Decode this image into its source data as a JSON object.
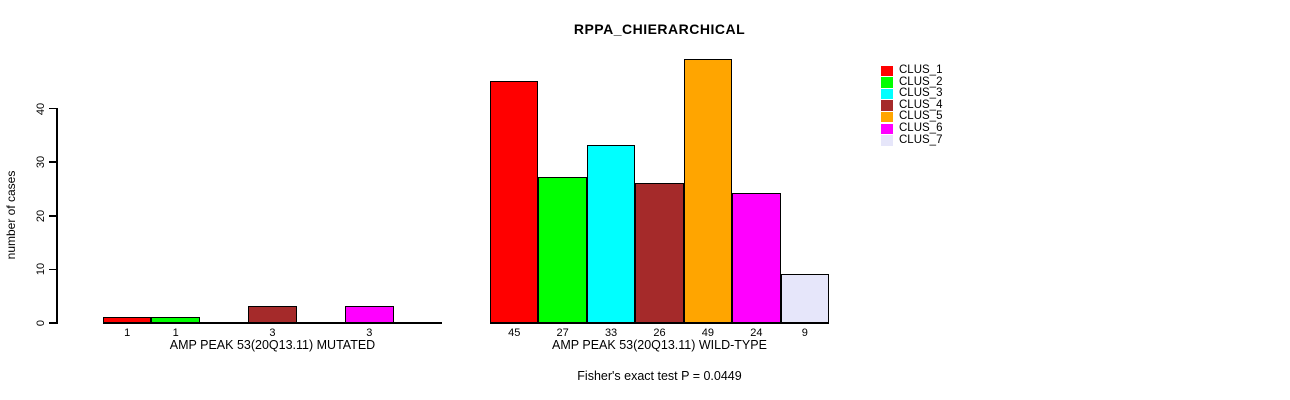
{
  "chart_data": {
    "type": "bar",
    "title": "RPPA_CHIERARCHICAL",
    "ylabel": "number of cases",
    "ylim": [
      0,
      49
    ],
    "yticks": [
      0,
      10,
      20,
      30,
      40
    ],
    "grid": false,
    "legend_position": "right",
    "categories": [
      "CLUS_1",
      "CLUS_2",
      "CLUS_3",
      "CLUS_4",
      "CLUS_5",
      "CLUS_6",
      "CLUS_7"
    ],
    "legend": [
      {
        "label": "CLUS_1",
        "color": "#FF0000"
      },
      {
        "label": "CLUS_2",
        "color": "#00FF00"
      },
      {
        "label": "CLUS_3",
        "color": "#00FFFF"
      },
      {
        "label": "CLUS_4",
        "color": "#A52A2A"
      },
      {
        "label": "CLUS_5",
        "color": "#FFA500"
      },
      {
        "label": "CLUS_6",
        "color": "#FF00FF"
      },
      {
        "label": "CLUS_7",
        "color": "#E6E6FA"
      }
    ],
    "groups": [
      {
        "label": "AMP PEAK 53(20Q13.11) MUTATED",
        "values": [
          1,
          1,
          0,
          3,
          0,
          3,
          0
        ],
        "bar_value_labels": [
          "1",
          "1",
          "",
          "3",
          "",
          "3",
          ""
        ]
      },
      {
        "label": "AMP PEAK 53(20Q13.11) WILD-TYPE",
        "values": [
          45,
          27,
          33,
          26,
          49,
          24,
          9
        ],
        "bar_value_labels": [
          "45",
          "27",
          "33",
          "26",
          "49",
          "24",
          "9"
        ]
      }
    ],
    "annotation": "Fisher's exact test P = 0.0449"
  },
  "colors": {
    "background": "#FFFFFF",
    "axis": "#000000",
    "text": "#000000",
    "bar_border": "#000000"
  }
}
